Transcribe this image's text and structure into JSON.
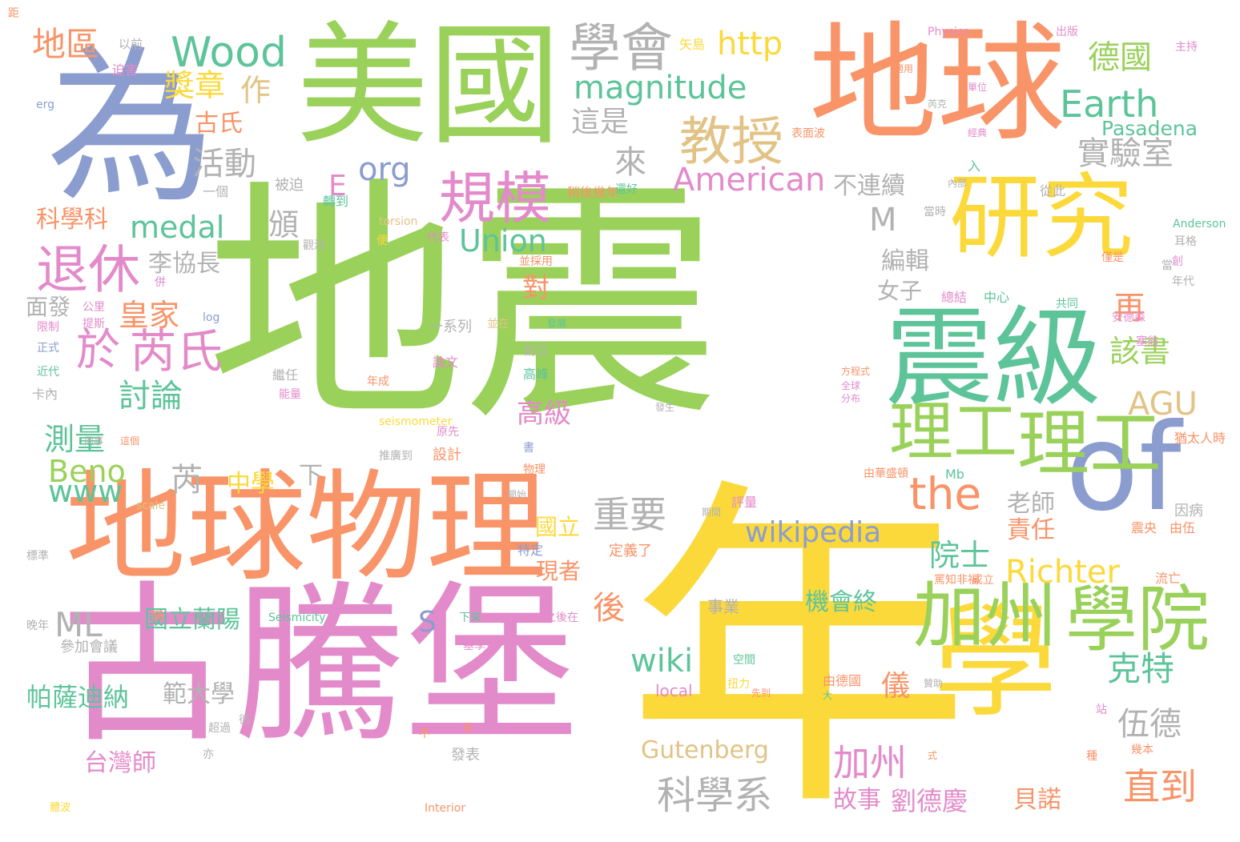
{
  "palette": {
    "green": "#9ad15a",
    "yellow": "#fcd93a",
    "orange": "#f99368",
    "blue": "#8b9dcf",
    "pink": "#e38bca",
    "teal": "#5dc49a",
    "gray": "#b2b2b2",
    "tan": "#e2c386"
  },
  "words": [
    {
      "text": "地震",
      "color": "green"
    },
    {
      "text": "年",
      "color": "yellow"
    },
    {
      "text": "古騰堡",
      "color": "pink"
    },
    {
      "text": "美國",
      "color": "green"
    },
    {
      "text": "地球",
      "color": "orange"
    },
    {
      "text": "為",
      "color": "blue"
    },
    {
      "text": "地球物理",
      "color": "orange"
    },
    {
      "text": "學",
      "color": "yellow"
    },
    {
      "text": "震級",
      "color": "teal"
    },
    {
      "text": "研究",
      "color": "yellow"
    },
    {
      "text": "of",
      "color": "blue"
    },
    {
      "text": "加州",
      "color": "green"
    },
    {
      "text": "理工",
      "color": "green"
    },
    {
      "text": "學院",
      "color": "green"
    },
    {
      "text": "理工",
      "color": "green"
    },
    {
      "text": "規模",
      "color": "pink"
    },
    {
      "text": "學會",
      "color": "gray"
    },
    {
      "text": "教授",
      "color": "tan"
    },
    {
      "text": "退休",
      "color": "pink"
    },
    {
      "text": "於",
      "color": "pink"
    },
    {
      "text": "芮氏",
      "color": "pink"
    },
    {
      "text": "Wood",
      "color": "teal"
    },
    {
      "text": "magnitude",
      "color": "teal"
    },
    {
      "text": "Earth",
      "color": "teal"
    },
    {
      "text": "德國",
      "color": "green"
    },
    {
      "text": "實驗室",
      "color": "gray"
    },
    {
      "text": "http",
      "color": "yellow"
    },
    {
      "text": "地區",
      "color": "orange"
    },
    {
      "text": "獎章",
      "color": "yellow"
    },
    {
      "text": "作",
      "color": "tan"
    },
    {
      "text": "古氏",
      "color": "orange"
    },
    {
      "text": "這是",
      "color": "gray"
    },
    {
      "text": "活動",
      "color": "gray"
    },
    {
      "text": "來",
      "color": "gray"
    },
    {
      "text": "org",
      "color": "blue"
    },
    {
      "text": "E",
      "color": "pink"
    },
    {
      "text": "American",
      "color": "pink"
    },
    {
      "text": "不連續",
      "color": "gray"
    },
    {
      "text": "Pasadena",
      "color": "teal"
    },
    {
      "text": "medal",
      "color": "teal"
    },
    {
      "text": "頒",
      "color": "gray"
    },
    {
      "text": "Union",
      "color": "teal"
    },
    {
      "text": "M",
      "color": "gray"
    },
    {
      "text": "科學科",
      "color": "orange"
    },
    {
      "text": "李協長",
      "color": "gray"
    },
    {
      "text": "編輯",
      "color": "gray"
    },
    {
      "text": "對",
      "color": "orange"
    },
    {
      "text": "女子",
      "color": "gray"
    },
    {
      "text": "再",
      "color": "orange"
    },
    {
      "text": "皇家",
      "color": "orange"
    },
    {
      "text": "面發",
      "color": "gray"
    },
    {
      "text": "討論",
      "color": "teal"
    },
    {
      "text": "該書",
      "color": "green"
    },
    {
      "text": "AGU",
      "color": "tan"
    },
    {
      "text": "測量",
      "color": "teal"
    },
    {
      "text": "Beno",
      "color": "green"
    },
    {
      "text": "www",
      "color": "teal"
    },
    {
      "text": "芮",
      "color": "gray"
    },
    {
      "text": "the",
      "color": "orange"
    },
    {
      "text": "高級",
      "color": "pink"
    },
    {
      "text": "中學",
      "color": "yellow"
    },
    {
      "text": "下",
      "color": "gray"
    },
    {
      "text": "老師",
      "color": "gray"
    },
    {
      "text": "責任",
      "color": "orange"
    },
    {
      "text": "重要",
      "color": "gray"
    },
    {
      "text": "wikipedia",
      "color": "blue"
    },
    {
      "text": "國立",
      "color": "yellow"
    },
    {
      "text": "現者",
      "color": "orange"
    },
    {
      "text": "院士",
      "color": "teal"
    },
    {
      "text": "Richter",
      "color": "yellow"
    },
    {
      "text": "ML",
      "color": "gray"
    },
    {
      "text": "S",
      "color": "blue"
    },
    {
      "text": "後",
      "color": "orange"
    },
    {
      "text": "機會終",
      "color": "teal"
    },
    {
      "text": "wiki",
      "color": "teal"
    },
    {
      "text": "國立蘭陽",
      "color": "teal"
    },
    {
      "text": "克特",
      "color": "teal"
    },
    {
      "text": "伍德",
      "color": "gray"
    },
    {
      "text": "儀",
      "color": "orange"
    },
    {
      "text": "範大學",
      "color": "gray"
    },
    {
      "text": "帕薩迪納",
      "color": "teal"
    },
    {
      "text": "Gutenberg",
      "color": "tan"
    },
    {
      "text": "台灣師",
      "color": "pink"
    },
    {
      "text": "加州",
      "color": "pink"
    },
    {
      "text": "科學系",
      "color": "gray"
    },
    {
      "text": "直到",
      "color": "orange"
    },
    {
      "text": "故事",
      "color": "pink"
    },
    {
      "text": "劉德慶",
      "color": "pink"
    },
    {
      "text": "貝諾",
      "color": "orange"
    },
    {
      "text": "以前",
      "color": "gray"
    },
    {
      "text": "迫害",
      "color": "pink"
    },
    {
      "text": "erg",
      "color": "blue"
    },
    {
      "text": "矢島",
      "color": "yellow"
    },
    {
      "text": "Physics",
      "color": "pink"
    },
    {
      "text": "出版",
      "color": "pink"
    },
    {
      "text": "單位",
      "color": "pink"
    },
    {
      "text": "適用",
      "color": "orange"
    },
    {
      "text": "芮克",
      "color": "gray"
    },
    {
      "text": "經典",
      "color": "pink"
    },
    {
      "text": "表面波",
      "color": "orange"
    },
    {
      "text": "內部",
      "color": "gray"
    },
    {
      "text": "入",
      "color": "teal"
    },
    {
      "text": "從此",
      "color": "gray"
    },
    {
      "text": "被迫",
      "color": "gray"
    },
    {
      "text": "一個",
      "color": "gray"
    },
    {
      "text": "轉到",
      "color": "teal"
    },
    {
      "text": "稍後幾年",
      "color": "orange"
    },
    {
      "text": "還好",
      "color": "teal"
    },
    {
      "text": "torsion",
      "color": "tan"
    },
    {
      "text": "當時",
      "color": "gray"
    },
    {
      "text": "代表",
      "color": "pink"
    },
    {
      "text": "便",
      "color": "yellow"
    },
    {
      "text": "並採用",
      "color": "orange"
    },
    {
      "text": "觀測",
      "color": "gray"
    },
    {
      "text": "併",
      "color": "pink"
    },
    {
      "text": "公里",
      "color": "pink"
    },
    {
      "text": "提斯",
      "color": "pink"
    },
    {
      "text": "log",
      "color": "blue"
    },
    {
      "text": "限制",
      "color": "pink"
    },
    {
      "text": "正式",
      "color": "blue"
    },
    {
      "text": "近代",
      "color": "teal"
    },
    {
      "text": "卡內",
      "color": "gray"
    },
    {
      "text": "一系列",
      "color": "gray"
    },
    {
      "text": "並在",
      "color": "tan"
    },
    {
      "text": "創立",
      "color": "gray"
    },
    {
      "text": "論文",
      "color": "pink"
    },
    {
      "text": "高峰",
      "color": "teal"
    },
    {
      "text": "繼任",
      "color": "gray"
    },
    {
      "text": "年成",
      "color": "orange"
    },
    {
      "text": "能量",
      "color": "pink"
    },
    {
      "text": "總結",
      "color": "pink"
    },
    {
      "text": "中心",
      "color": "teal"
    },
    {
      "text": "共同",
      "color": "teal"
    },
    {
      "text": "方程式",
      "color": "orange"
    },
    {
      "text": "全球",
      "color": "pink"
    },
    {
      "text": "分布",
      "color": "pink"
    },
    {
      "text": "發生",
      "color": "gray"
    },
    {
      "text": "seismometer",
      "color": "yellow"
    },
    {
      "text": "原先",
      "color": "pink"
    },
    {
      "text": "設計",
      "color": "orange"
    },
    {
      "text": "這個",
      "color": "orange"
    },
    {
      "text": "同事",
      "color": "gray"
    },
    {
      "text": "推廣到",
      "color": "gray"
    },
    {
      "text": "書",
      "color": "blue"
    },
    {
      "text": "物理",
      "color": "orange"
    },
    {
      "text": "開始",
      "color": "gray"
    },
    {
      "text": "scale",
      "color": "tan"
    },
    {
      "text": "評量",
      "color": "pink"
    },
    {
      "text": "期間",
      "color": "gray"
    },
    {
      "text": "Mb",
      "color": "teal"
    },
    {
      "text": "由華盛頓",
      "color": "orange"
    },
    {
      "text": "標準",
      "color": "gray"
    },
    {
      "text": "特定",
      "color": "blue"
    },
    {
      "text": "定義了",
      "color": "orange"
    },
    {
      "text": "罵知非福",
      "color": "orange"
    },
    {
      "text": "成立",
      "color": "orange"
    },
    {
      "text": "震央",
      "color": "orange"
    },
    {
      "text": "由伍",
      "color": "orange"
    },
    {
      "text": "流亡",
      "color": "orange"
    },
    {
      "text": "晚年",
      "color": "gray"
    },
    {
      "text": "稱",
      "color": "orange"
    },
    {
      "text": "Seismicity",
      "color": "teal"
    },
    {
      "text": "下來",
      "color": "teal"
    },
    {
      "text": "之後在",
      "color": "pink"
    },
    {
      "text": "事業",
      "color": "gray"
    },
    {
      "text": "參加會議",
      "color": "gray"
    },
    {
      "text": "基學會",
      "color": "pink"
    },
    {
      "text": "空間",
      "color": "teal"
    },
    {
      "text": "扭力",
      "color": "yellow"
    },
    {
      "text": "由德國",
      "color": "orange"
    },
    {
      "text": "贊助",
      "color": "gray"
    },
    {
      "text": "local",
      "color": "pink"
    },
    {
      "text": "先到",
      "color": "orange"
    },
    {
      "text": "大",
      "color": "teal"
    },
    {
      "text": "超過",
      "color": "gray"
    },
    {
      "text": "德",
      "color": "gray"
    },
    {
      "text": "不",
      "color": "orange"
    },
    {
      "text": "發表",
      "color": "gray"
    },
    {
      "text": "留",
      "color": "orange"
    },
    {
      "text": "種",
      "color": "orange"
    },
    {
      "text": "幾本",
      "color": "orange"
    },
    {
      "text": "站",
      "color": "pink"
    },
    {
      "text": "式",
      "color": "orange"
    },
    {
      "text": "亦",
      "color": "gray"
    },
    {
      "text": "體波",
      "color": "yellow"
    },
    {
      "text": "Interior",
      "color": "orange"
    },
    {
      "text": "Anderson",
      "color": "teal"
    },
    {
      "text": "耳格",
      "color": "gray"
    },
    {
      "text": "當",
      "color": "gray"
    },
    {
      "text": "創",
      "color": "pink"
    },
    {
      "text": "年代",
      "color": "gray"
    },
    {
      "text": "僅是",
      "color": "orange"
    },
    {
      "text": "安德森",
      "color": "pink"
    },
    {
      "text": "塞翁",
      "color": "pink"
    },
    {
      "text": "猶太人時",
      "color": "orange"
    },
    {
      "text": "因病",
      "color": "gray"
    },
    {
      "text": "主持",
      "color": "pink"
    },
    {
      "text": "發展",
      "color": "teal"
    },
    {
      "text": "距",
      "color": "orange"
    }
  ]
}
